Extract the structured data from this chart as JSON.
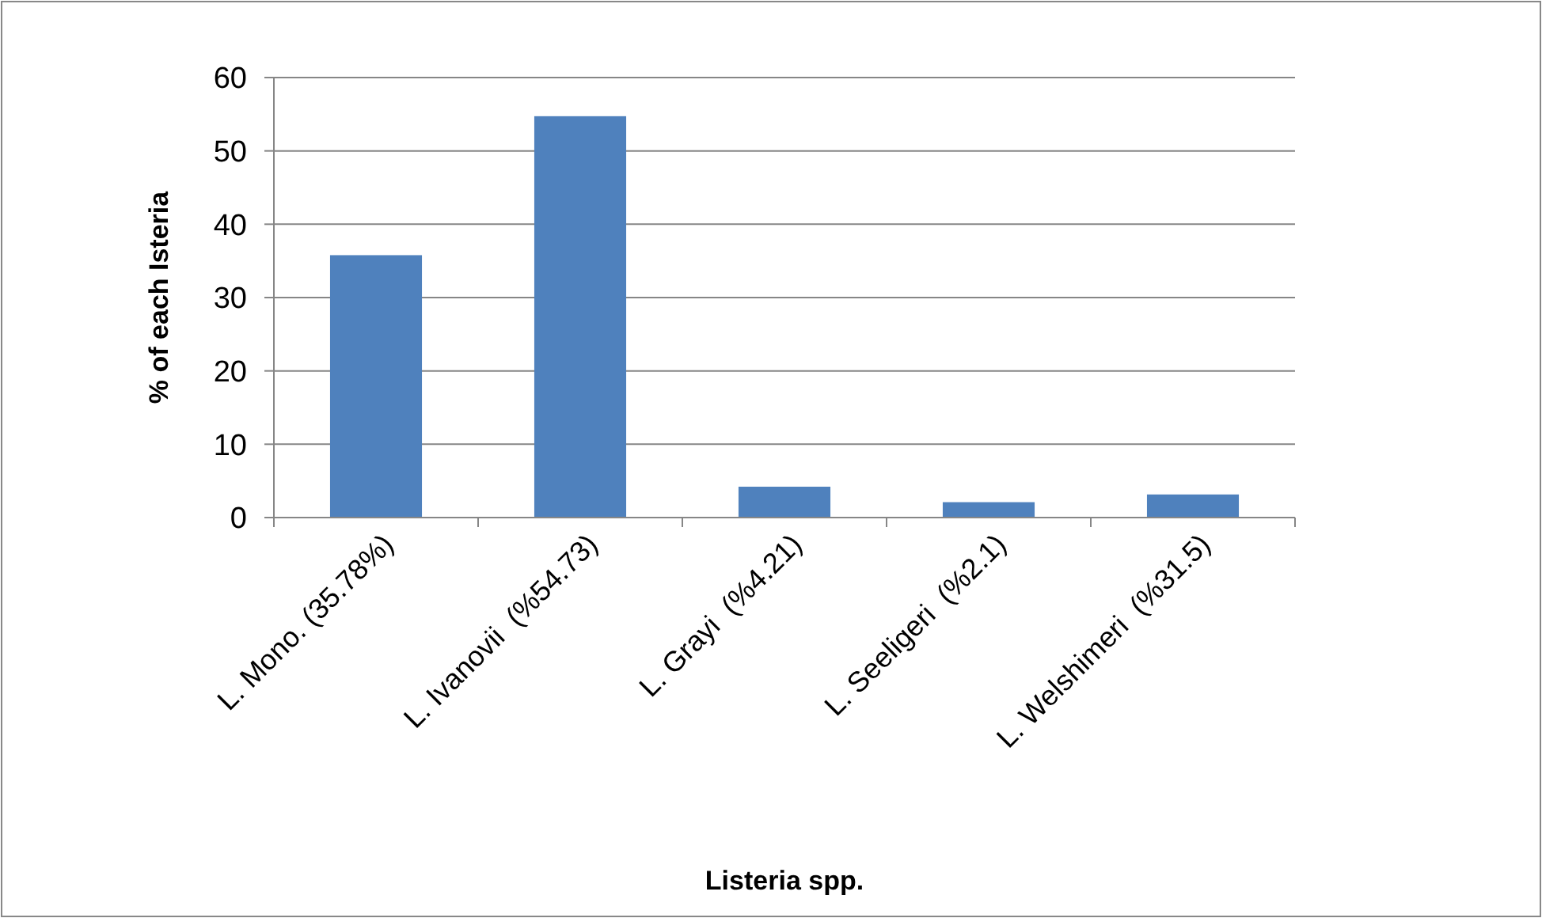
{
  "chart_data": {
    "type": "bar",
    "xlabel": "Listeria spp.",
    "ylabel": "% of each Isteria",
    "categories": [
      "L. Mono. (35.78%)",
      "L. Ivanovii  (%54.73)",
      "L. Grayi  (%4.21)",
      "L. Seeligeri  (%2.1)",
      "L. Welshimeri  (%31.5)"
    ],
    "values": [
      35.78,
      54.73,
      4.21,
      2.1,
      3.15
    ],
    "color": "#4f81bd",
    "ylim": [
      0,
      60
    ],
    "yticks": [
      0,
      10,
      20,
      30,
      40,
      50,
      60
    ],
    "grid": "y"
  }
}
